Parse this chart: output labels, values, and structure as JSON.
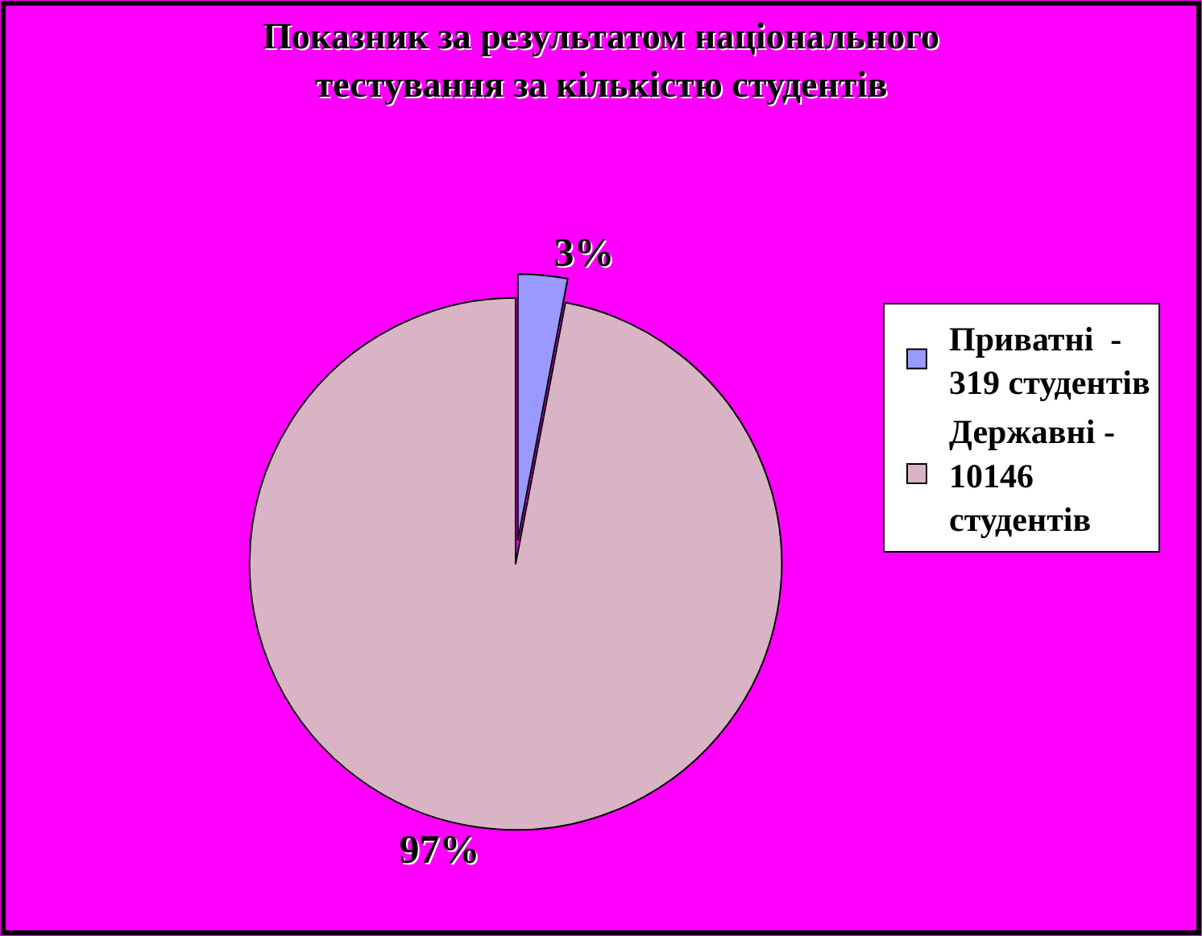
{
  "chart_data": {
    "type": "pie",
    "title": "Показник за результатом національного тестування за кількістю студентів",
    "categories": [
      "Приватні  - 319 студентів",
      "Державні - 10146 студентів"
    ],
    "values": [
      3,
      97
    ],
    "colors": [
      "#9999ff",
      "#d8b4c4"
    ],
    "value_labels": [
      "3%",
      "97%"
    ],
    "legend": "right"
  }
}
